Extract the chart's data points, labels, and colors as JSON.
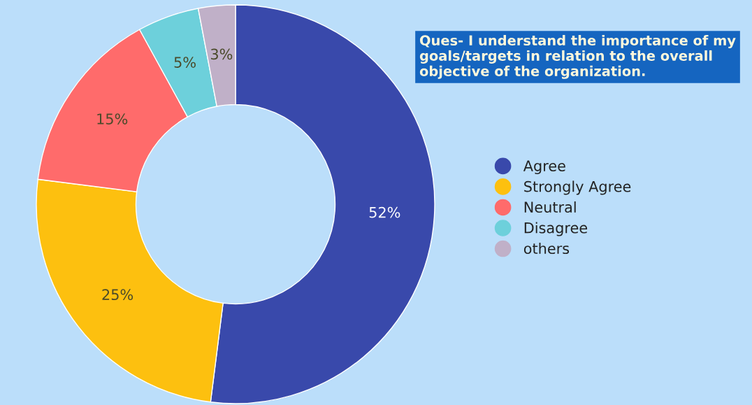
{
  "chart_data": {
    "type": "donut",
    "title": "Ques- I understand the importance of my goals/targets in relation to the overall objective of the organization.",
    "categories": [
      "Agree",
      "Strongly Agree",
      "Neutral",
      "Disagree",
      "others"
    ],
    "values": [
      52,
      25,
      15,
      5,
      3
    ],
    "value_labels": [
      "52%",
      "25%",
      "15%",
      "5%",
      "3%"
    ],
    "colors": [
      "#3949ab",
      "#fdc00f",
      "#ff6b6b",
      "#6dd0db",
      "#c0b0c8"
    ],
    "legend": "right"
  }
}
